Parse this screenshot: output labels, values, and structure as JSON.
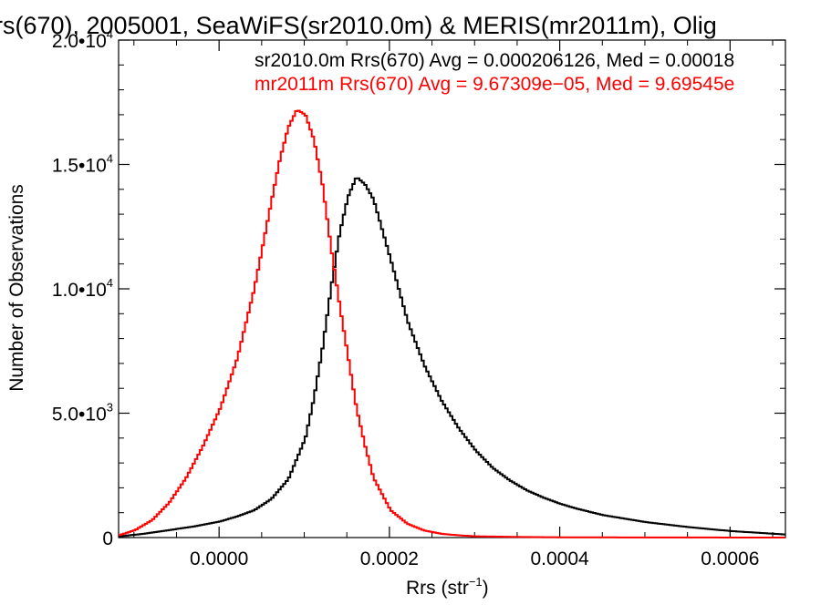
{
  "chart_data": {
    "type": "line",
    "title": "rs(670), 2005001, SeaWiFS(sr2010.0m) & MERIS(mr2011m), Olig",
    "xlabel": "Rrs (str",
    "xlabel_exp": "−1",
    "xlabel_close": ")",
    "ylabel": "Number of Observations",
    "xlim": [
      -0.000118,
      0.000665
    ],
    "ylim": [
      0,
      20000
    ],
    "x_ticks": [
      {
        "value": 0.0,
        "label": "0.0000"
      },
      {
        "value": 0.0002,
        "label": "0.0002"
      },
      {
        "value": 0.0004,
        "label": "0.0004"
      },
      {
        "value": 0.0006,
        "label": "0.0006"
      }
    ],
    "y_ticks": [
      {
        "value": 0,
        "label": "0",
        "exp": ""
      },
      {
        "value": 5000,
        "label": "5.0•10",
        "exp": "3"
      },
      {
        "value": 10000,
        "label": "1.0•10",
        "exp": "4"
      },
      {
        "value": 15000,
        "label": "1.5•10",
        "exp": "4"
      },
      {
        "value": 20000,
        "label": "2.0•10",
        "exp": "4"
      }
    ],
    "annotations": [
      {
        "text": "sr2010.0m Rrs(670) Avg = 0.000206126, Med = 0.00018",
        "color": "#000000"
      },
      {
        "text": "mr2011m Rrs(670) Avg = 9.67309e−05, Med = 9.69545e",
        "color": "#ff0000"
      }
    ],
    "series": [
      {
        "color": "#000000",
        "x": [
          -0.000118,
          -9e-05,
          -6e-05,
          -3e-05,
          0.0,
          2e-05,
          4e-05,
          6e-05,
          8e-05,
          0.0001,
          0.00011,
          0.00012,
          0.00013,
          0.00014,
          0.00015,
          0.00016,
          0.00017,
          0.00018,
          0.0002,
          0.00022,
          0.00024,
          0.00026,
          0.00028,
          0.0003,
          0.00032,
          0.00034,
          0.00036,
          0.00038,
          0.0004,
          0.00042,
          0.00045,
          0.0005,
          0.00055,
          0.0006,
          0.000665
        ],
        "y": [
          50,
          150,
          300,
          450,
          650,
          850,
          1100,
          1550,
          2350,
          4000,
          5600,
          7600,
          10000,
          12200,
          13700,
          14500,
          14200,
          13600,
          11200,
          8700,
          6900,
          5500,
          4400,
          3500,
          2800,
          2300,
          1900,
          1600,
          1350,
          1150,
          900,
          620,
          420,
          260,
          120
        ]
      },
      {
        "color": "#ff0000",
        "x": [
          -0.000118,
          -0.0001,
          -8e-05,
          -6e-05,
          -4e-05,
          -2e-05,
          0.0,
          2e-05,
          4e-05,
          6e-05,
          7e-05,
          8e-05,
          9e-05,
          0.0001,
          0.00011,
          0.00012,
          0.00013,
          0.00014,
          0.00015,
          0.00016,
          0.00017,
          0.00018,
          0.0002,
          0.00022,
          0.00024,
          0.00026,
          0.00028,
          0.0003,
          0.00035,
          0.0004,
          0.0005,
          0.000665
        ],
        "y": [
          100,
          300,
          700,
          1400,
          2400,
          3700,
          5200,
          7200,
          10000,
          13500,
          15200,
          16500,
          17200,
          17000,
          16000,
          14200,
          11700,
          9400,
          7300,
          5200,
          3700,
          2400,
          1100,
          550,
          280,
          150,
          90,
          50,
          25,
          10,
          5,
          0
        ]
      }
    ]
  }
}
